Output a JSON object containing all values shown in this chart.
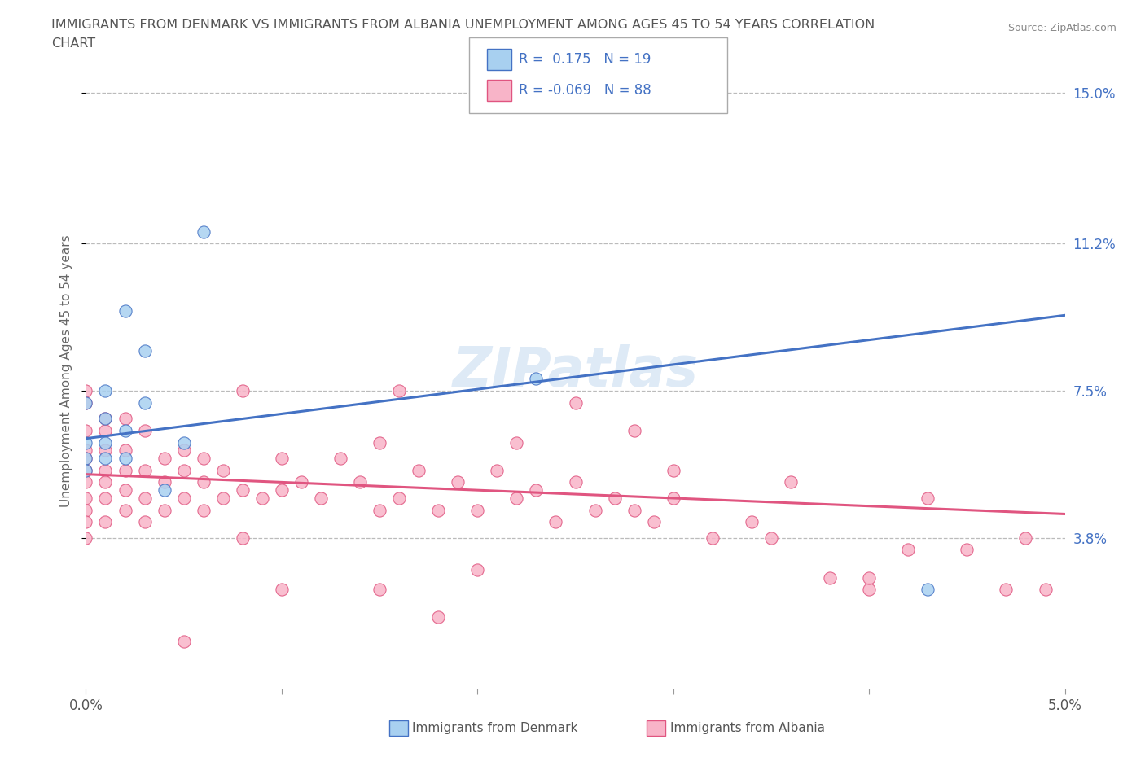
{
  "title_line1": "IMMIGRANTS FROM DENMARK VS IMMIGRANTS FROM ALBANIA UNEMPLOYMENT AMONG AGES 45 TO 54 YEARS CORRELATION",
  "title_line2": "CHART",
  "source": "Source: ZipAtlas.com",
  "ylabel": "Unemployment Among Ages 45 to 54 years",
  "xlim": [
    0.0,
    0.05
  ],
  "ylim": [
    0.0,
    0.16
  ],
  "ytick_vals": [
    0.038,
    0.075,
    0.112,
    0.15
  ],
  "ytick_labels": [
    "3.8%",
    "7.5%",
    "11.2%",
    "15.0%"
  ],
  "xtick_vals": [
    0.0,
    0.01,
    0.02,
    0.03,
    0.04,
    0.05
  ],
  "xtick_labels": [
    "0.0%",
    "",
    "",
    "",
    "",
    "5.0%"
  ],
  "R_denmark": 0.175,
  "N_denmark": 19,
  "R_albania": -0.069,
  "N_albania": 88,
  "color_denmark_fill": "#A8D0F0",
  "color_denmark_edge": "#4472C4",
  "color_albania_fill": "#F8B4C8",
  "color_albania_edge": "#E05580",
  "line_color_denmark": "#4472C4",
  "line_color_albania": "#E05580",
  "background_color": "#FFFFFF",
  "grid_color": "#BBBBBB",
  "watermark": "ZIPatlas",
  "dk_line_x0": 0.0,
  "dk_line_y0": 0.063,
  "dk_line_x1": 0.05,
  "dk_line_y1": 0.094,
  "al_line_x0": 0.0,
  "al_line_y0": 0.054,
  "al_line_x1": 0.05,
  "al_line_y1": 0.044,
  "denmark_x": [
    0.001,
    0.001,
    0.0,
    0.0,
    0.0,
    0.001,
    0.002,
    0.002,
    0.0,
    0.001,
    0.002,
    0.003,
    0.003,
    0.004,
    0.005,
    0.006,
    0.023,
    0.027,
    0.043
  ],
  "denmark_y": [
    0.058,
    0.062,
    0.062,
    0.058,
    0.055,
    0.068,
    0.058,
    0.065,
    0.072,
    0.075,
    0.095,
    0.072,
    0.085,
    0.05,
    0.062,
    0.115,
    0.078,
    0.148,
    0.025
  ],
  "albania_x": [
    0.0,
    0.0,
    0.0,
    0.0,
    0.0,
    0.0,
    0.0,
    0.0,
    0.0,
    0.0,
    0.0,
    0.001,
    0.001,
    0.001,
    0.001,
    0.001,
    0.001,
    0.001,
    0.002,
    0.002,
    0.002,
    0.002,
    0.002,
    0.003,
    0.003,
    0.003,
    0.003,
    0.004,
    0.004,
    0.004,
    0.005,
    0.005,
    0.005,
    0.006,
    0.006,
    0.006,
    0.007,
    0.007,
    0.008,
    0.008,
    0.009,
    0.01,
    0.01,
    0.011,
    0.012,
    0.013,
    0.014,
    0.015,
    0.015,
    0.016,
    0.017,
    0.018,
    0.019,
    0.02,
    0.021,
    0.022,
    0.023,
    0.024,
    0.025,
    0.026,
    0.027,
    0.028,
    0.029,
    0.03,
    0.032,
    0.034,
    0.035,
    0.036,
    0.038,
    0.04,
    0.042,
    0.043,
    0.045,
    0.047,
    0.048,
    0.049,
    0.025,
    0.028,
    0.015,
    0.01,
    0.005,
    0.02,
    0.03,
    0.04,
    0.016,
    0.022,
    0.008,
    0.018
  ],
  "albania_y": [
    0.06,
    0.055,
    0.052,
    0.048,
    0.045,
    0.042,
    0.038,
    0.058,
    0.065,
    0.072,
    0.075,
    0.06,
    0.055,
    0.052,
    0.048,
    0.065,
    0.042,
    0.068,
    0.06,
    0.055,
    0.05,
    0.045,
    0.068,
    0.065,
    0.055,
    0.048,
    0.042,
    0.058,
    0.052,
    0.045,
    0.06,
    0.055,
    0.048,
    0.058,
    0.052,
    0.045,
    0.055,
    0.048,
    0.075,
    0.05,
    0.048,
    0.058,
    0.05,
    0.052,
    0.048,
    0.058,
    0.052,
    0.062,
    0.045,
    0.048,
    0.055,
    0.045,
    0.052,
    0.045,
    0.055,
    0.048,
    0.05,
    0.042,
    0.052,
    0.045,
    0.048,
    0.045,
    0.042,
    0.048,
    0.038,
    0.042,
    0.038,
    0.052,
    0.028,
    0.025,
    0.035,
    0.048,
    0.035,
    0.025,
    0.038,
    0.025,
    0.072,
    0.065,
    0.025,
    0.025,
    0.012,
    0.03,
    0.055,
    0.028,
    0.075,
    0.062,
    0.038,
    0.018
  ]
}
